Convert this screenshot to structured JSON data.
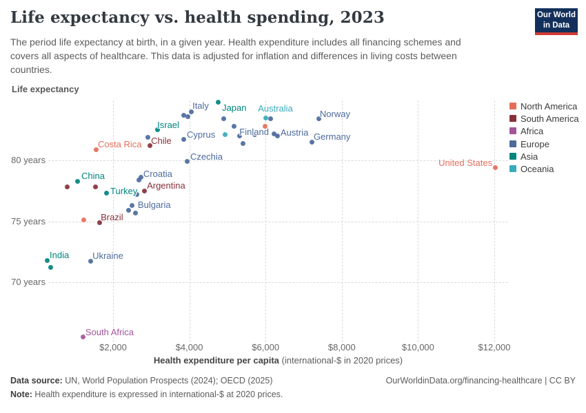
{
  "header": {
    "title": "Life expectancy vs. health spending, 2023",
    "subtitle_lines": [
      "The period life expectancy at birth, in a given year. Health expenditure includes all financing schemes and",
      "covers all aspects of healthcare. This data is adjusted for inflation and differences in living costs between",
      "countries."
    ],
    "logo": {
      "line1": "Our World",
      "line2": "in Data"
    }
  },
  "axes": {
    "y_axis_title": "Life expectancy",
    "x_axis_title_bold": "Health expenditure per capita",
    "x_axis_title_rest": " (international-$ in 2020 prices)"
  },
  "legend": {
    "items": [
      {
        "label": "North America",
        "color": "#E56E5A"
      },
      {
        "label": "South America",
        "color": "#883039"
      },
      {
        "label": "Africa",
        "color": "#A2559C"
      },
      {
        "label": "Europe",
        "color": "#4C6A9C"
      },
      {
        "label": "Asia",
        "color": "#00847E"
      },
      {
        "label": "Oceania",
        "color": "#38AABA"
      }
    ]
  },
  "chart_data": {
    "type": "scatter",
    "title": "Life expectancy vs. health spending, 2023",
    "xlabel": "Health expenditure per capita (international-$ in 2020 prices)",
    "ylabel": "Life expectancy",
    "xlim": [
      0,
      13000
    ],
    "ylim": [
      64,
      86
    ],
    "grid": "dashed",
    "legend_position": "right",
    "x_ticks": [
      {
        "label": "$2,000",
        "value": 2000
      },
      {
        "label": "$4,000",
        "value": 4000
      },
      {
        "label": "$6,000",
        "value": 6000
      },
      {
        "label": "$8,000",
        "value": 8000
      },
      {
        "label": "$10,000",
        "value": 10000
      },
      {
        "label": "$12,000",
        "value": 12000
      }
    ],
    "y_ticks": [
      {
        "label": "80 years",
        "value": 80
      },
      {
        "label": "75 years",
        "value": 75
      },
      {
        "label": "70 years",
        "value": 70
      }
    ],
    "series": [
      {
        "name": "North America",
        "color": "#E56E5A",
        "points": [
          {
            "country": "Costa Rica",
            "x": 1565,
            "y": 80.9,
            "label": {
              "dx": 2,
              "dy": -15,
              "anchor": "left"
            }
          },
          {
            "country": "",
            "x": 1240,
            "y": 75.1
          },
          {
            "country": "",
            "x": 5980,
            "y": 82.8
          },
          {
            "country": "United States",
            "x": 12020,
            "y": 79.4,
            "label": {
              "dx": -4,
              "dy": -15,
              "anchor": "right"
            }
          }
        ]
      },
      {
        "name": "South America",
        "color": "#883039",
        "points": [
          {
            "country": "Chile",
            "x": 2960,
            "y": 81.2,
            "label": {
              "dx": 2,
              "dy": -15,
              "anchor": "left"
            }
          },
          {
            "country": "Argentina",
            "x": 2815,
            "y": 77.5,
            "label": {
              "dx": 4,
              "dy": -15,
              "anchor": "left"
            }
          },
          {
            "country": "Brazil",
            "x": 1640,
            "y": 74.9,
            "label": {
              "dx": 2,
              "dy": -15,
              "anchor": "left"
            }
          },
          {
            "country": "",
            "x": 805,
            "y": 77.8
          },
          {
            "country": "",
            "x": 1530,
            "y": 77.8
          }
        ]
      },
      {
        "name": "Africa",
        "color": "#A2559C",
        "points": [
          {
            "country": "South Africa",
            "x": 1220,
            "y": 65.5,
            "label": {
              "dx": 3,
              "dy": -15,
              "anchor": "left"
            }
          }
        ]
      },
      {
        "name": "Europe",
        "color": "#4C6A9C",
        "points": [
          {
            "country": "Italy",
            "x": 4045,
            "y": 84.0,
            "label": {
              "dx": 2,
              "dy": -16,
              "anchor": "left"
            }
          },
          {
            "country": "",
            "x": 3860,
            "y": 83.7
          },
          {
            "country": "",
            "x": 3955,
            "y": 83.6
          },
          {
            "country": "Cyprus",
            "x": 3845,
            "y": 81.7,
            "label": {
              "dx": 5,
              "dy": -15,
              "anchor": "left"
            }
          },
          {
            "country": "Czechia",
            "x": 3935,
            "y": 79.9,
            "label": {
              "dx": 5,
              "dy": -15,
              "anchor": "left"
            }
          },
          {
            "country": "",
            "x": 2905,
            "y": 81.9
          },
          {
            "country": "",
            "x": 4910,
            "y": 83.4
          },
          {
            "country": "",
            "x": 5165,
            "y": 82.8
          },
          {
            "country": "",
            "x": 5325,
            "y": 82.0
          },
          {
            "country": "",
            "x": 5400,
            "y": 81.4
          },
          {
            "country": "",
            "x": 5725,
            "y": 82.1
          },
          {
            "country": "Finland",
            "x": 6230,
            "y": 82.2,
            "label": {
              "dx": -8,
              "dy": -10,
              "anchor": "right"
            }
          },
          {
            "country": "",
            "x": 6140,
            "y": 83.4
          },
          {
            "country": "Austria",
            "x": 6320,
            "y": 82.0,
            "label": {
              "dx": 4,
              "dy": -13,
              "anchor": "left"
            }
          },
          {
            "country": "Norway",
            "x": 7405,
            "y": 83.4,
            "label": {
              "dx": 1,
              "dy": -15,
              "anchor": "left"
            }
          },
          {
            "country": "Germany",
            "x": 7225,
            "y": 81.5,
            "label": {
              "dx": 2,
              "dy": -15,
              "anchor": "left"
            }
          },
          {
            "country": "Croatia",
            "x": 2740,
            "y": 78.6,
            "label": {
              "dx": 3,
              "dy": -13,
              "anchor": "left"
            }
          },
          {
            "country": "",
            "x": 2670,
            "y": 78.4
          },
          {
            "country": "",
            "x": 2615,
            "y": 77.2
          },
          {
            "country": "Bulgaria",
            "x": 2505,
            "y": 76.3,
            "label": {
              "dx": 8,
              "dy": -8,
              "anchor": "left"
            }
          },
          {
            "country": "",
            "x": 2400,
            "y": 75.9
          },
          {
            "country": "",
            "x": 2595,
            "y": 75.7
          },
          {
            "country": "Ukraine",
            "x": 1405,
            "y": 71.7,
            "label": {
              "dx": 3,
              "dy": -16,
              "anchor": "left"
            }
          }
        ]
      },
      {
        "name": "Asia",
        "color": "#00847E",
        "points": [
          {
            "country": "Japan",
            "x": 4750,
            "y": 84.8,
            "label": {
              "dx": 6,
              "dy": 1,
              "anchor": "left"
            }
          },
          {
            "country": "Israel",
            "x": 3160,
            "y": 82.5,
            "label": {
              "dx": 0,
              "dy": -15,
              "anchor": "left"
            }
          },
          {
            "country": "China",
            "x": 1060,
            "y": 78.3,
            "label": {
              "dx": 6,
              "dy": -15,
              "anchor": "left"
            }
          },
          {
            "country": "Turkey",
            "x": 1820,
            "y": 77.3,
            "label": {
              "dx": 6,
              "dy": -11,
              "anchor": "left"
            }
          },
          {
            "country": "India",
            "x": 265,
            "y": 71.8,
            "label": {
              "dx": 4,
              "dy": -15,
              "anchor": "left"
            }
          },
          {
            "country": "",
            "x": 370,
            "y": 71.2
          }
        ]
      },
      {
        "name": "Oceania",
        "color": "#38AABA",
        "points": [
          {
            "country": "Australia",
            "x": 6000,
            "y": 83.5,
            "label": {
              "dx": -11,
              "dy": -21,
              "anchor": "left"
            }
          },
          {
            "country": "",
            "x": 4930,
            "y": 82.1
          }
        ]
      }
    ]
  },
  "footer": {
    "source_label": "Data source:",
    "source_text": " UN, World Population Prospects (2024); OECD (2025)",
    "note_label": "Note:",
    "note_text": " Health expenditure is expressed in international-$ at 2020 prices.",
    "link": "OurWorldinData.org/financing-healthcare | CC BY"
  }
}
